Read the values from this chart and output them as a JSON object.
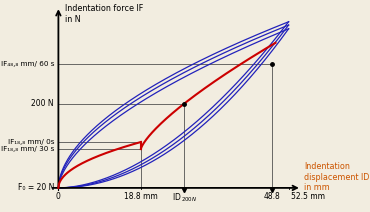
{
  "title_yaxis": "Indentation force IF\nin N",
  "title_xaxis": "Indentation\ndisplacement ID\nin mm",
  "xlim": [
    -8,
    57
  ],
  "ylim": [
    -30,
    420
  ],
  "x_max_display": 52.5,
  "x_18_8": 18.8,
  "x_48_8": 48.8,
  "y_200": 200,
  "y_f0": 20,
  "y_IF_188_0s": 118,
  "y_IF_188_30s": 103,
  "y_IF_488_60s": 285,
  "label_f0": "F₀ = 20 N",
  "label_IF_188_0s": "IF₁₈,₈ mm/ 0s",
  "label_IF_188_30s": "IF₁₈,₈ mm/ 30 s",
  "label_IF_488_60s": "IF₄₈,₈ mm/ 60 s",
  "label_200N": "200 N",
  "label_188mm": "18.8 mm",
  "label_488mm": "48.8",
  "label_525mm": "52.5 mm",
  "color_blue": "#2222bb",
  "color_red": "#cc0000",
  "bg_color": "#f2ede0",
  "annot_color": "#555555"
}
